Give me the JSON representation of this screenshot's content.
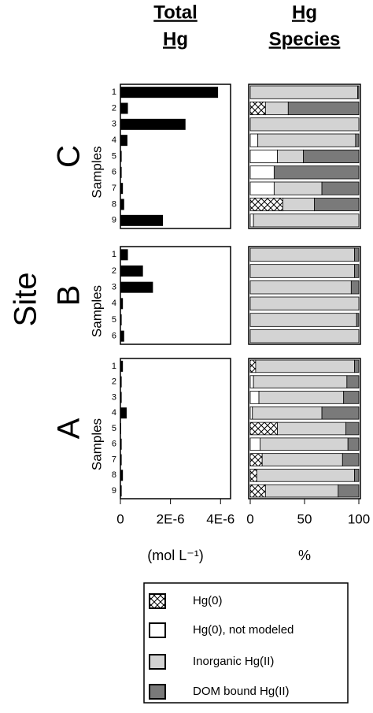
{
  "y_axis_label": "Site",
  "chart_data": [
    {
      "type": "hbar",
      "title": [
        "Total",
        "Hg"
      ],
      "xlabel": "(mol L⁻¹)",
      "color": "#000000",
      "xlim": [
        0,
        4.4e-06
      ],
      "xticks": [
        0,
        {
          "value": 2e-06,
          "label": "2E-6"
        },
        {
          "value": 4e-06,
          "label": "4E-6"
        }
      ],
      "panels": [
        {
          "site": "C",
          "ylabel": "Samples",
          "categories": [
            "1",
            "2",
            "3",
            "4",
            "5",
            "6",
            "7",
            "8",
            "9"
          ],
          "values": [
            3.9e-06,
            3e-07,
            2.6e-06,
            2.8e-07,
            5e-08,
            5e-08,
            1e-07,
            1.5e-07,
            1.7e-06
          ]
        },
        {
          "site": "B",
          "ylabel": "Samples",
          "categories": [
            "1",
            "2",
            "3",
            "4",
            "5",
            "6"
          ],
          "values": [
            3e-07,
            9e-07,
            1.3e-06,
            1e-07,
            5e-08,
            1.5e-07
          ]
        },
        {
          "site": "A",
          "ylabel": "Samples",
          "categories": [
            "1",
            "2",
            "3",
            "4",
            "5",
            "6",
            "7",
            "8",
            "9"
          ],
          "values": [
            1e-07,
            5e-08,
            5e-08,
            2.5e-07,
            3e-08,
            5e-08,
            5e-08,
            1e-07,
            5e-08
          ]
        }
      ]
    },
    {
      "type": "stacked-hbar",
      "title": [
        "Hg",
        "Species"
      ],
      "xlabel": "%",
      "xlim": [
        0,
        100
      ],
      "xticks": [
        0,
        50,
        100
      ],
      "series": [
        {
          "name": "Hg(0)",
          "color": "#ffffff",
          "pattern": "crosshatch"
        },
        {
          "name": "Hg(0), not modeled",
          "color": "#ffffff"
        },
        {
          "name": "Inorganic Hg(II)",
          "color": "#d3d3d3"
        },
        {
          "name": "DOM bound Hg(II)",
          "color": "#7a7a7a"
        }
      ],
      "panels": [
        {
          "values": [
            [
              0,
              14,
              0,
              0,
              0,
              0,
              0,
              30,
              0
            ],
            [
              0,
              0,
              0,
              7,
              25,
              22,
              22,
              0,
              3
            ],
            [
              99,
              21,
              100,
              90,
              24,
              0,
              44,
              29,
              97
            ],
            [
              1,
              65,
              0,
              3,
              51,
              78,
              34,
              41,
              0
            ]
          ]
        },
        {
          "values": [
            [
              0,
              0,
              0,
              0,
              0,
              0
            ],
            [
              0,
              0,
              0,
              0,
              0,
              0
            ],
            [
              96,
              96,
              93,
              100,
              98,
              100
            ],
            [
              4,
              4,
              7,
              0,
              2,
              0
            ]
          ]
        },
        {
          "values": [
            [
              5,
              0,
              0,
              0,
              25,
              0,
              11,
              6,
              14
            ],
            [
              0,
              3,
              8,
              2,
              0,
              9,
              0,
              0,
              0
            ],
            [
              91,
              86,
              78,
              64,
              63,
              81,
              74,
              90,
              67
            ],
            [
              4,
              11,
              14,
              34,
              12,
              10,
              15,
              4,
              19
            ]
          ]
        }
      ]
    }
  ]
}
